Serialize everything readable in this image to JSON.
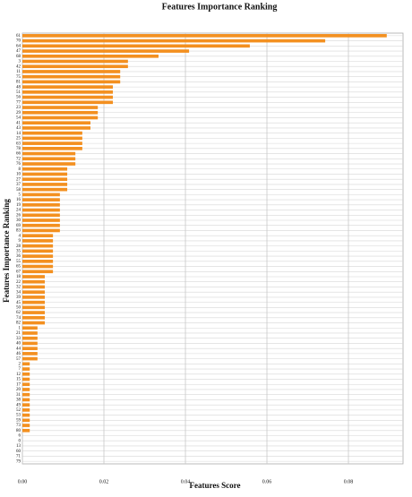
{
  "chart_data": {
    "type": "barh",
    "title": "Features Importance Ranking",
    "xlabel": "Features Score",
    "ylabel": "Features Importance Ranking",
    "categories": [
      "61",
      "70",
      "64",
      "47",
      "68",
      "3",
      "42",
      "11",
      "75",
      "81",
      "48",
      "51",
      "56",
      "77",
      "23",
      "29",
      "54",
      "41",
      "43",
      "14",
      "25",
      "63",
      "78",
      "66",
      "72",
      "76",
      "8",
      "10",
      "27",
      "37",
      "58",
      "5",
      "16",
      "19",
      "24",
      "26",
      "30",
      "69",
      "83",
      "4",
      "9",
      "28",
      "35",
      "36",
      "55",
      "65",
      "67",
      "18",
      "22",
      "32",
      "34",
      "39",
      "45",
      "50",
      "62",
      "74",
      "82",
      "1",
      "21",
      "33",
      "40",
      "44",
      "46",
      "57",
      "2",
      "7",
      "12",
      "15",
      "17",
      "20",
      "31",
      "38",
      "49",
      "52",
      "53",
      "59",
      "73",
      "80",
      "6",
      "0",
      "13",
      "60",
      "71",
      "79"
    ],
    "values": [
      0.0894,
      0.0743,
      0.0558,
      0.0409,
      0.0334,
      0.0259,
      0.0259,
      0.024,
      0.024,
      0.024,
      0.0222,
      0.0222,
      0.0222,
      0.0222,
      0.0185,
      0.0185,
      0.0185,
      0.0167,
      0.0167,
      0.0147,
      0.0147,
      0.0147,
      0.0147,
      0.013,
      0.013,
      0.013,
      0.011,
      0.011,
      0.011,
      0.011,
      0.011,
      0.0092,
      0.0092,
      0.0092,
      0.0092,
      0.0092,
      0.0092,
      0.0092,
      0.0092,
      0.0075,
      0.0075,
      0.0075,
      0.0075,
      0.0075,
      0.0075,
      0.0075,
      0.0075,
      0.0055,
      0.0055,
      0.0055,
      0.0055,
      0.0055,
      0.0055,
      0.0055,
      0.0055,
      0.0055,
      0.0055,
      0.0037,
      0.0037,
      0.0037,
      0.0037,
      0.0037,
      0.0037,
      0.0037,
      0.0018,
      0.0018,
      0.0018,
      0.0018,
      0.0018,
      0.0018,
      0.0018,
      0.0018,
      0.0018,
      0.0018,
      0.0018,
      0.0018,
      0.0018,
      0.0018,
      0,
      0,
      0,
      0,
      0,
      0
    ],
    "color": "#f39020",
    "xlim": [
      0,
      0.0934
    ],
    "xticks": [
      {
        "value": 0,
        "label": "0.00"
      },
      {
        "value": 0.02,
        "label": "0.02"
      },
      {
        "value": 0.04,
        "label": "0.04"
      },
      {
        "value": 0.06,
        "label": "0.06"
      },
      {
        "value": 0.08,
        "label": "0.08"
      }
    ],
    "grid": true
  }
}
